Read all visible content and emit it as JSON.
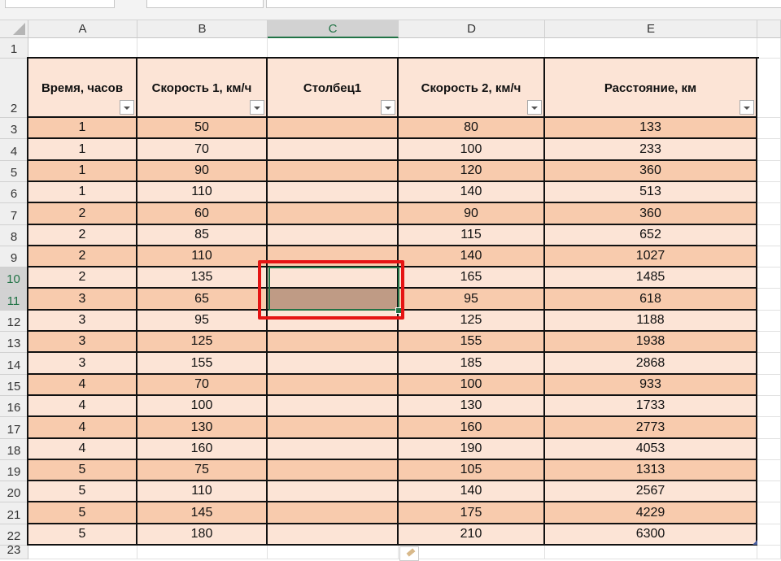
{
  "columns": [
    "A",
    "B",
    "C",
    "D",
    "E"
  ],
  "rows_numbers": [
    "1",
    "2",
    "3",
    "4",
    "5",
    "6",
    "7",
    "8",
    "9",
    "10",
    "11",
    "12",
    "13",
    "14",
    "15",
    "16",
    "17",
    "18",
    "19",
    "20",
    "21",
    "22",
    "23"
  ],
  "headers": [
    "Время, часов",
    "Скорость 1, км/ч",
    "Столбец1",
    "Скорость 2, км/ч",
    "Расстояние, км"
  ],
  "data": [
    [
      "1",
      "50",
      "",
      "80",
      "133"
    ],
    [
      "1",
      "70",
      "",
      "100",
      "233"
    ],
    [
      "1",
      "90",
      "",
      "120",
      "360"
    ],
    [
      "1",
      "110",
      "",
      "140",
      "513"
    ],
    [
      "2",
      "60",
      "",
      "90",
      "360"
    ],
    [
      "2",
      "85",
      "",
      "115",
      "652"
    ],
    [
      "2",
      "110",
      "",
      "140",
      "1027"
    ],
    [
      "2",
      "135",
      "",
      "165",
      "1485"
    ],
    [
      "3",
      "65",
      "",
      "95",
      "618"
    ],
    [
      "3",
      "95",
      "",
      "125",
      "1188"
    ],
    [
      "3",
      "125",
      "",
      "155",
      "1938"
    ],
    [
      "3",
      "155",
      "",
      "185",
      "2868"
    ],
    [
      "4",
      "70",
      "",
      "100",
      "933"
    ],
    [
      "4",
      "100",
      "",
      "130",
      "1733"
    ],
    [
      "4",
      "130",
      "",
      "160",
      "2773"
    ],
    [
      "4",
      "160",
      "",
      "190",
      "4053"
    ],
    [
      "5",
      "75",
      "",
      "105",
      "1313"
    ],
    [
      "5",
      "110",
      "",
      "140",
      "2567"
    ],
    [
      "5",
      "145",
      "",
      "175",
      "4229"
    ],
    [
      "5",
      "180",
      "",
      "210",
      "6300"
    ]
  ],
  "selection": {
    "range": "C10:C11",
    "selected_column": "C",
    "selected_rows": [
      "10",
      "11"
    ]
  },
  "colors": {
    "band_dark": "#f8cbad",
    "band_light": "#fce4d6",
    "selection_fill": "#bf9b85",
    "selection_border": "#217346",
    "highlight": "#e51414"
  }
}
